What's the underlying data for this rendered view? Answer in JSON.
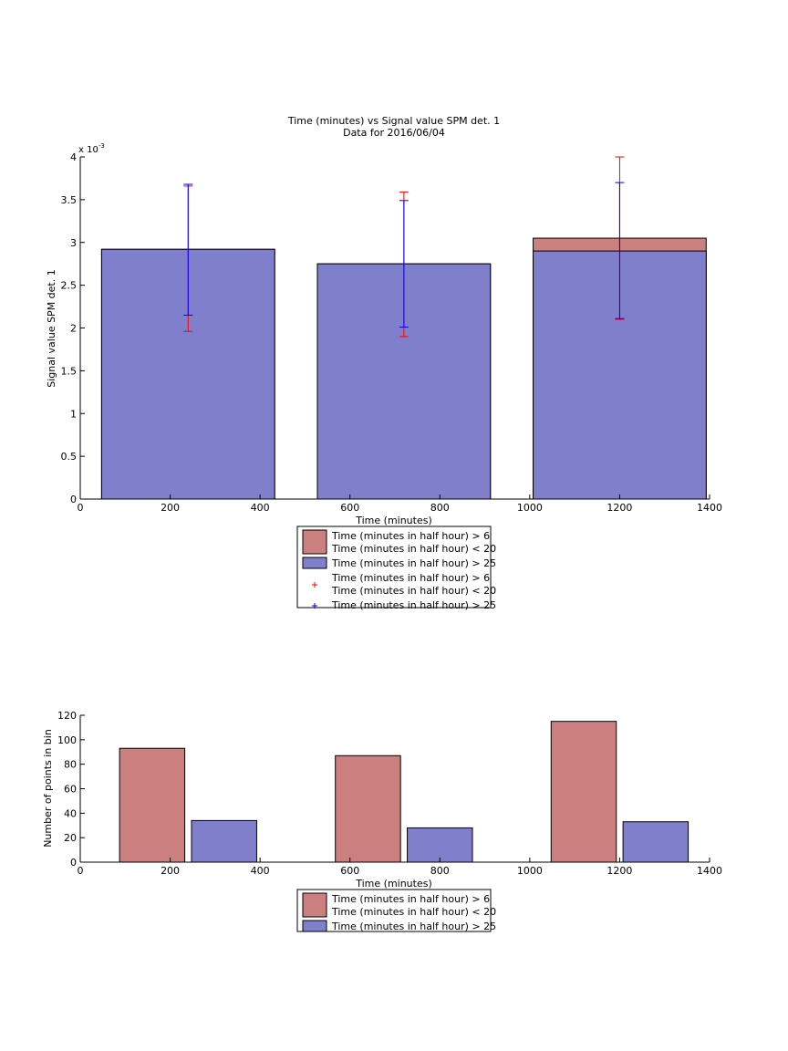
{
  "chart_data": [
    {
      "type": "bar",
      "title_lines": [
        "Time (minutes) vs Signal value SPM det. 1",
        "Data for 2016/06/04"
      ],
      "xlabel": "Time (minutes)",
      "ylabel": "Signal value SPM det. 1",
      "y_exponent_label": "x 10",
      "y_exponent_power": "-3",
      "xlim": [
        0,
        1400
      ],
      "ylim": [
        0,
        4
      ],
      "xticks": [
        0,
        200,
        400,
        600,
        800,
        1000,
        1200,
        1400
      ],
      "yticks": [
        0,
        0.5,
        1,
        1.5,
        2,
        2.5,
        3,
        3.5,
        4
      ],
      "ytick_labels": [
        "0",
        "0.5",
        "1",
        "1.5",
        "2",
        "2.5",
        "3",
        "3.5",
        "4"
      ],
      "categories": [
        240,
        720,
        1200
      ],
      "bar_width": 385,
      "grid": false,
      "series": [
        {
          "name": "Time (minutes in half hour) > 6 | Time (minutes in half hour) < 20",
          "color": "#cc7f7f",
          "values": [
            2.92,
            2.75,
            3.05
          ],
          "err_low": [
            1.96,
            1.9,
            2.1
          ],
          "err_high": [
            3.66,
            3.59,
            4.0
          ],
          "err_color": "#ff0000"
        },
        {
          "name": "Time (minutes in half hour) > 25",
          "color": "#7f7fcc",
          "values": [
            2.92,
            2.75,
            2.9
          ],
          "err_low": [
            2.15,
            2.01,
            2.11
          ],
          "err_high": [
            3.68,
            3.49,
            3.7
          ],
          "err_color": "#0000ff"
        }
      ],
      "legend": {
        "placement": "below-center",
        "entries": [
          {
            "kind": "patch",
            "color": "#cc7f7f",
            "lines": [
              "Time (minutes in half hour) > 6",
              "Time (minutes in half hour) < 20"
            ]
          },
          {
            "kind": "patch",
            "color": "#7f7fcc",
            "lines": [
              "Time (minutes in half hour) > 25"
            ]
          },
          {
            "kind": "marker",
            "color": "#ff0000",
            "lines": [
              "Time (minutes in half hour) > 6",
              "Time (minutes in half hour) < 20"
            ]
          },
          {
            "kind": "marker",
            "color": "#0000ff",
            "lines": [
              "Time (minutes in half hour) > 25"
            ]
          }
        ]
      }
    },
    {
      "type": "bar",
      "xlabel": "Time (minutes)",
      "ylabel": "Number of points in bin",
      "xlim": [
        0,
        1400
      ],
      "ylim": [
        0,
        120
      ],
      "xticks": [
        0,
        200,
        400,
        600,
        800,
        1000,
        1200,
        1400
      ],
      "yticks": [
        0,
        20,
        40,
        60,
        80,
        100,
        120
      ],
      "ytick_labels": [
        "0",
        "20",
        "40",
        "60",
        "80",
        "100",
        "120"
      ],
      "categories": [
        240,
        720,
        1200
      ],
      "bar_width": 145,
      "grid": false,
      "series": [
        {
          "name": "Time (minutes in half hour) > 6 | Time (minutes in half hour) < 20",
          "color": "#cc7f7f",
          "centers": [
            160,
            640,
            1120
          ],
          "values": [
            93,
            87,
            115
          ]
        },
        {
          "name": "Time (minutes in half hour) > 25",
          "color": "#7f7fcc",
          "centers": [
            320,
            800,
            1280
          ],
          "values": [
            34,
            28,
            33
          ]
        }
      ],
      "legend": {
        "placement": "below-center",
        "entries": [
          {
            "kind": "patch",
            "color": "#cc7f7f",
            "lines": [
              "Time (minutes in half hour) > 6",
              "Time (minutes in half hour) < 20"
            ]
          },
          {
            "kind": "patch",
            "color": "#7f7fcc",
            "lines": [
              "Time (minutes in half hour) > 25"
            ]
          }
        ]
      }
    }
  ]
}
